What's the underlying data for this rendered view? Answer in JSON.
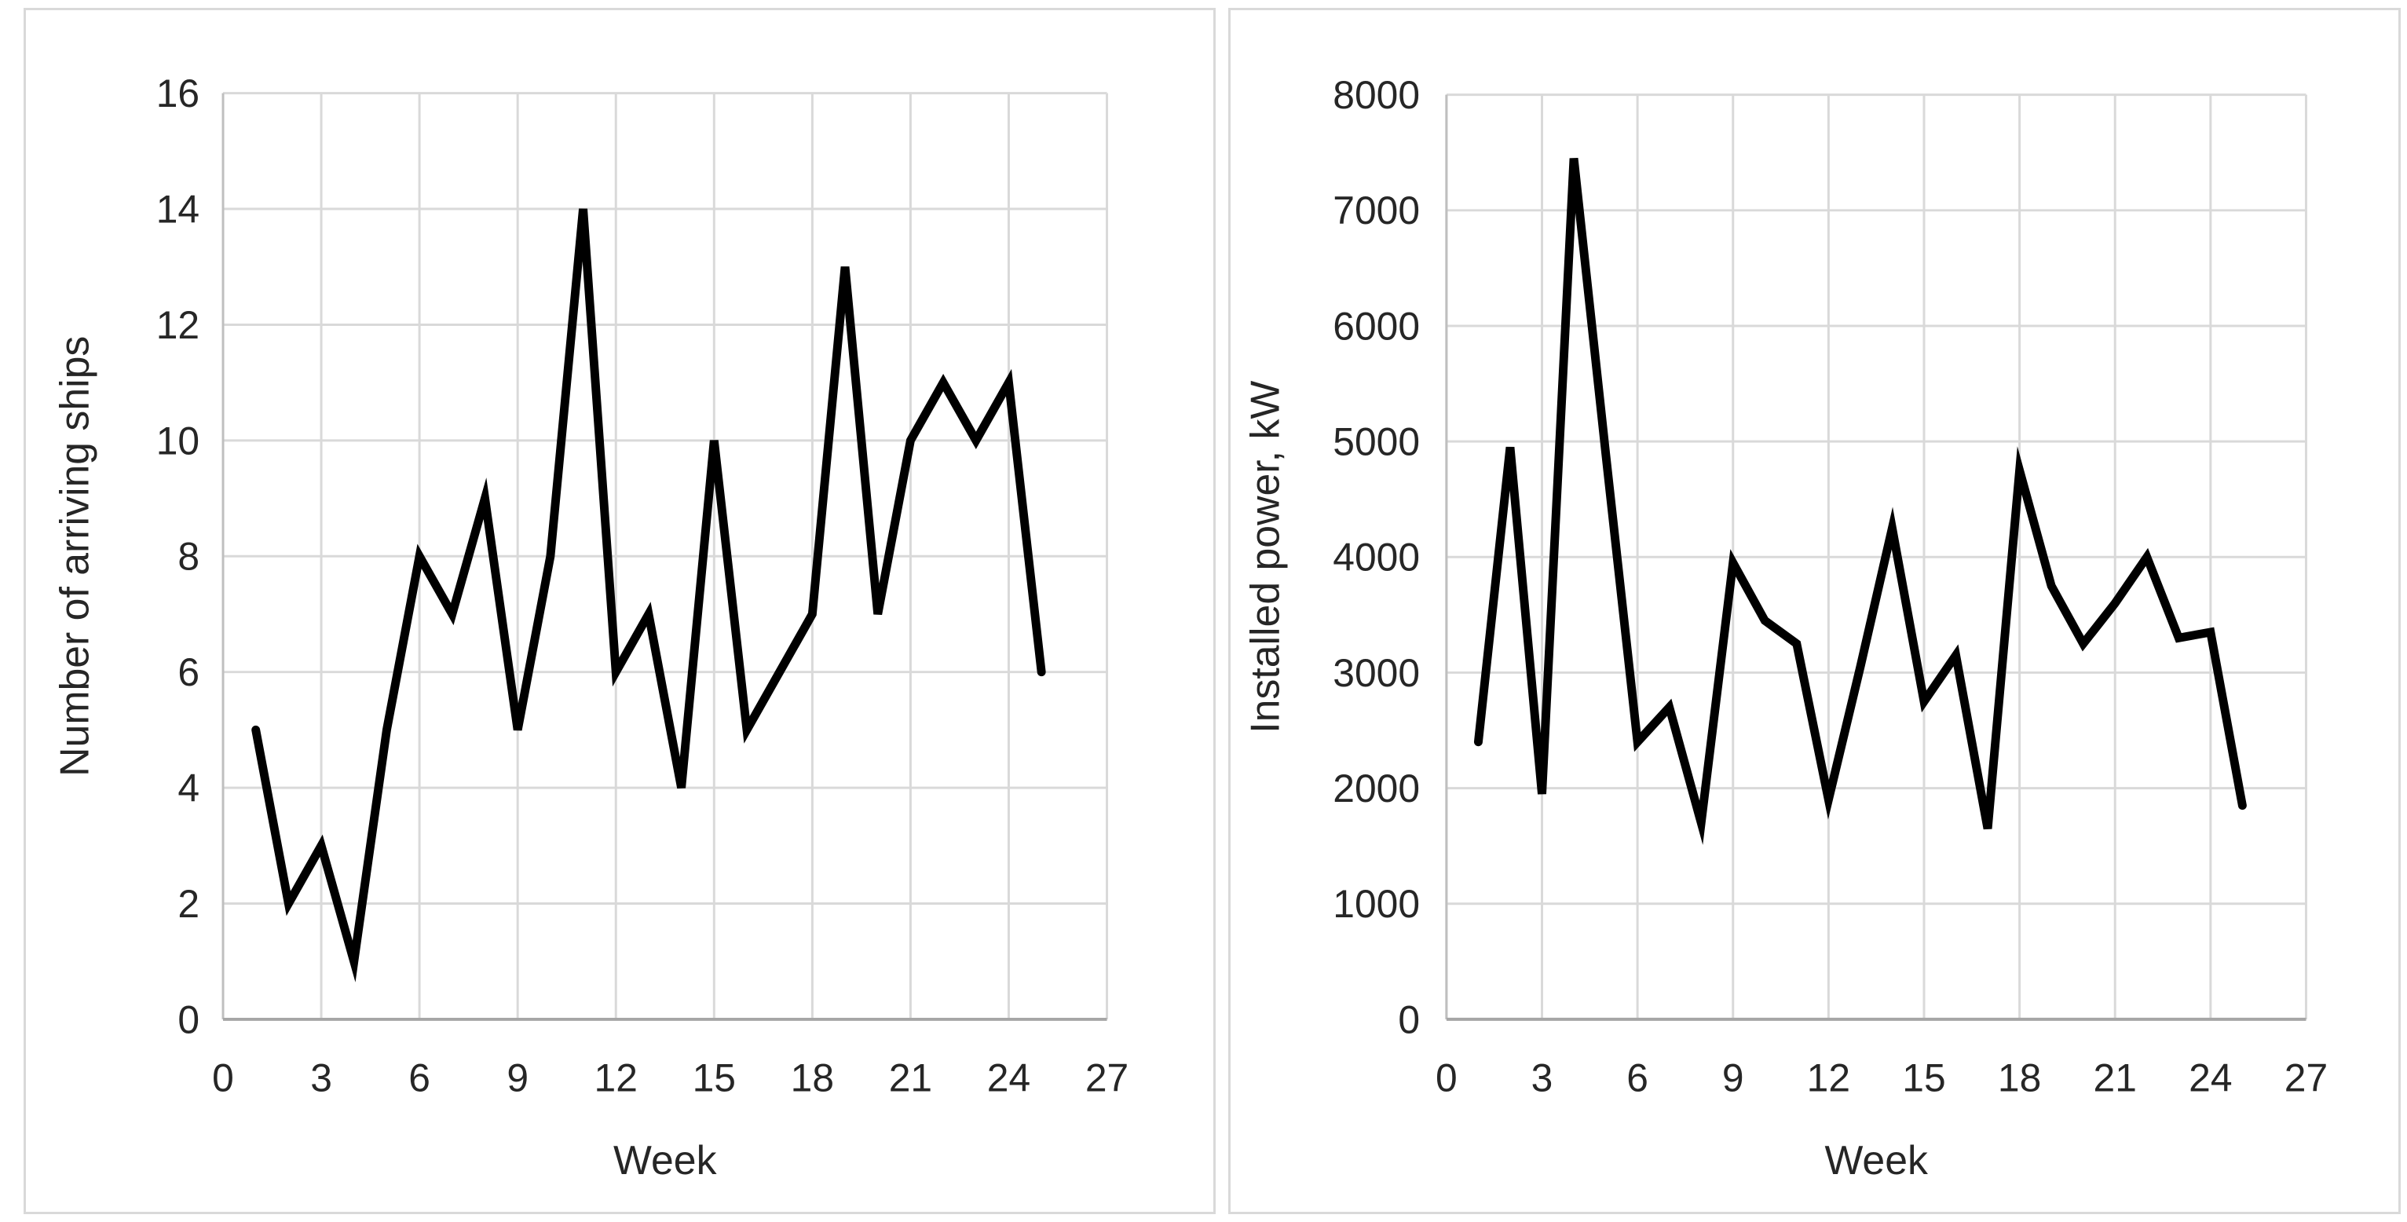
{
  "page": {
    "background_color": "#ffffff",
    "panel_border_color": "#d9d9d9",
    "gridline_color": "#d9d9d9",
    "x_axis_line_color": "#a6a6a6",
    "y_axis_line_color": "#bfbfbf",
    "series_line_color": "#000000",
    "text_color": "#262626"
  },
  "chart_data": [
    {
      "id": "ships",
      "type": "line",
      "title": "",
      "xlabel": "Week",
      "ylabel": "Number of arriving ships",
      "legend": false,
      "grid": true,
      "xlim": [
        0,
        27
      ],
      "ylim": [
        0,
        16
      ],
      "xtick_step": 3,
      "ytick_step": 2,
      "xticks": [
        0,
        3,
        6,
        9,
        12,
        15,
        18,
        21,
        24,
        27
      ],
      "yticks": [
        0,
        2,
        4,
        6,
        8,
        10,
        12,
        14,
        16
      ],
      "x": [
        1,
        2,
        3,
        4,
        5,
        6,
        7,
        8,
        9,
        10,
        11,
        12,
        13,
        14,
        15,
        16,
        17,
        18,
        19,
        20,
        21,
        22,
        23,
        24,
        25
      ],
      "values": [
        5,
        2,
        3,
        1,
        5,
        8,
        7,
        9,
        5,
        8,
        14,
        6,
        7,
        4,
        10,
        5,
        6,
        7,
        13,
        7,
        10,
        11,
        10,
        11,
        6
      ]
    },
    {
      "id": "power",
      "type": "line",
      "title": "",
      "xlabel": "Week",
      "ylabel": "Installed power, kW",
      "legend": false,
      "grid": true,
      "xlim": [
        0,
        27
      ],
      "ylim": [
        0,
        8000
      ],
      "xtick_step": 3,
      "ytick_step": 1000,
      "xticks": [
        0,
        3,
        6,
        9,
        12,
        15,
        18,
        21,
        24,
        27
      ],
      "yticks": [
        0,
        1000,
        2000,
        3000,
        4000,
        5000,
        6000,
        7000,
        8000
      ],
      "x": [
        1,
        2,
        3,
        4,
        5,
        6,
        7,
        8,
        9,
        10,
        11,
        12,
        13,
        14,
        15,
        16,
        17,
        18,
        19,
        20,
        21,
        22,
        23,
        24,
        25
      ],
      "values": [
        2400,
        4950,
        1950,
        7450,
        4900,
        2400,
        2700,
        1700,
        3950,
        3450,
        3250,
        1900,
        3050,
        4250,
        2750,
        3150,
        1650,
        4750,
        3750,
        3250,
        3600,
        4000,
        3300,
        3350,
        1850
      ]
    }
  ]
}
